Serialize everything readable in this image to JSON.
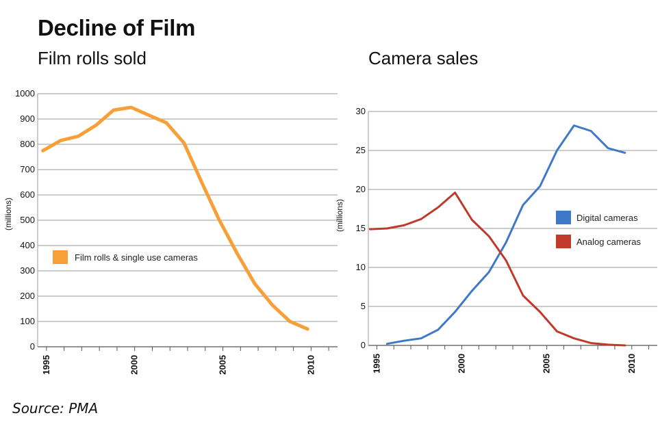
{
  "title": "Decline of Film",
  "source": "Source: PMA",
  "chart_data": [
    {
      "type": "line",
      "title": "Film rolls sold",
      "ylabel": "(millions)",
      "xlim": [
        1994.5,
        2011.5
      ],
      "ylim": [
        0,
        1000
      ],
      "yticks": [
        0,
        100,
        200,
        300,
        400,
        500,
        600,
        700,
        800,
        900,
        1000
      ],
      "xticks": [
        1995,
        2000,
        2005,
        2010
      ],
      "grid": true,
      "legend_position": "center-left",
      "series": [
        {
          "name": "Film rolls & single use cameras",
          "color": "#F7A03A",
          "x": [
            1994.8,
            1995.8,
            1996.8,
            1997.8,
            1998.8,
            1999.8,
            2000.8,
            2001.8,
            2002.8,
            2003.8,
            2004.8,
            2005.8,
            2006.8,
            2007.8,
            2008.8,
            2009.8
          ],
          "y": [
            775,
            815,
            832,
            875,
            935,
            946,
            915,
            885,
            805,
            650,
            500,
            370,
            250,
            165,
            100,
            70
          ]
        }
      ]
    },
    {
      "type": "line",
      "title": "Camera sales",
      "ylabel": "(millions)",
      "xlim": [
        1994.5,
        2011.5
      ],
      "ylim": [
        0,
        30
      ],
      "yticks": [
        0,
        5,
        10,
        15,
        20,
        25,
        30
      ],
      "xticks": [
        1995,
        2000,
        2005,
        2010
      ],
      "grid": true,
      "legend_position": "right",
      "series": [
        {
          "name": "Digital cameras",
          "color": "#3E78C6",
          "x": [
            1995.6,
            1996.6,
            1997.6,
            1998.6,
            1999.6,
            2000.6,
            2001.6,
            2002.6,
            2003.6,
            2004.6,
            2005.6,
            2006.6,
            2007.6,
            2008.6,
            2009.6
          ],
          "y": [
            0.2,
            0.6,
            0.9,
            2.0,
            4.3,
            7.0,
            9.4,
            13.2,
            18.0,
            20.4,
            25.0,
            28.2,
            27.5,
            25.3,
            24.7
          ]
        },
        {
          "name": "Analog cameras",
          "color": "#C0392B",
          "x": [
            1994.6,
            1995.6,
            1996.6,
            1997.6,
            1998.6,
            1999.6,
            2000.6,
            2001.6,
            2002.6,
            2003.6,
            2004.6,
            2005.6,
            2006.6,
            2007.6,
            2008.6,
            2009.6
          ],
          "y": [
            14.9,
            15.0,
            15.4,
            16.2,
            17.7,
            19.6,
            16.1,
            14.0,
            10.9,
            6.4,
            4.3,
            1.8,
            0.9,
            0.3,
            0.1,
            0.0
          ]
        }
      ]
    }
  ]
}
